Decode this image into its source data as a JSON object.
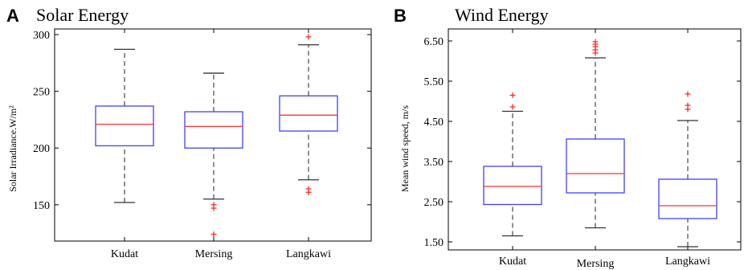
{
  "panels": [
    {
      "letter": "A",
      "title": "Solar Energy"
    },
    {
      "letter": "B",
      "title": "Wind Energy"
    }
  ],
  "chart_data": [
    {
      "type": "box",
      "title": "Solar Energy",
      "ylabel": "Solar Irradiance.W/m²",
      "ylim": [
        118,
        305
      ],
      "yticks": [
        150,
        200,
        250,
        300
      ],
      "ytick_labels": [
        "150",
        "200",
        "250",
        "300"
      ],
      "categories": [
        "Kudat",
        "Mersing",
        "Langkawi"
      ],
      "boxes": [
        {
          "whisker_low": 152,
          "q1": 202,
          "median": 221,
          "q3": 237,
          "whisker_high": 287,
          "outliers": []
        },
        {
          "whisker_low": 155,
          "q1": 200,
          "median": 219,
          "q3": 232,
          "whisker_high": 266,
          "outliers": [
            150,
            147,
            124
          ]
        },
        {
          "whisker_low": 172,
          "q1": 215,
          "median": 229,
          "q3": 246,
          "whisker_high": 291,
          "outliers": [
            298,
            164,
            161
          ]
        }
      ],
      "colors": {
        "box": "#4040ff",
        "median": "#ff3030",
        "outlier": "#ff2020",
        "whisker": "#555555"
      }
    },
    {
      "type": "box",
      "title": "Wind Energy",
      "ylabel": "Mean wind speed, m/s",
      "ylim": [
        1.3,
        6.8
      ],
      "yticks": [
        1.5,
        2.5,
        3.5,
        4.5,
        5.5,
        6.5
      ],
      "ytick_labels": [
        "1.50",
        "2.50",
        "3.50",
        "4.50",
        "5.50",
        "6.50"
      ],
      "categories": [
        "Kudat",
        "Mersing",
        "Langkawi"
      ],
      "boxes": [
        {
          "whisker_low": 1.65,
          "q1": 2.43,
          "median": 2.88,
          "q3": 3.38,
          "whisker_high": 4.75,
          "outliers": [
            5.15,
            4.86
          ]
        },
        {
          "whisker_low": 1.85,
          "q1": 2.72,
          "median": 3.2,
          "q3": 4.06,
          "whisker_high": 6.08,
          "outliers": [
            6.48,
            6.42,
            6.36,
            6.28,
            6.2
          ]
        },
        {
          "whisker_low": 1.38,
          "q1": 2.08,
          "median": 2.4,
          "q3": 3.06,
          "whisker_high": 4.52,
          "outliers": [
            5.18,
            4.9,
            4.8
          ]
        }
      ],
      "colors": {
        "box": "#4040ff",
        "median": "#ff3030",
        "outlier": "#ff2020",
        "whisker": "#555555"
      }
    }
  ]
}
